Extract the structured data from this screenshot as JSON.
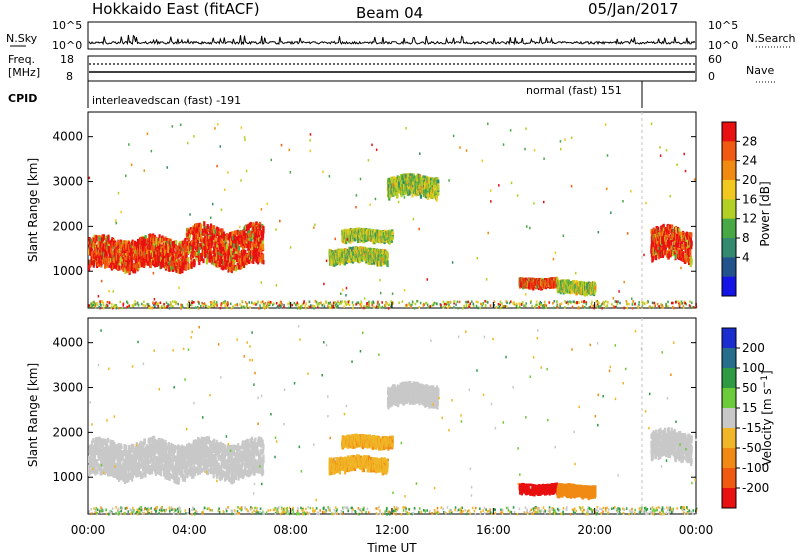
{
  "header": {
    "station": "Hokkaido East (fitACF)",
    "beam": "Beam 04",
    "date": "05/Jan/2017"
  },
  "noise_panel": {
    "left_label": "N.Sky",
    "right_label": "N.Search",
    "left_ticks": [
      "10^5",
      "10^0"
    ],
    "right_ticks": [
      "10^5",
      "10^0"
    ]
  },
  "freq_panel": {
    "left_label_1": "Freq.",
    "left_label_2": "[MHz]",
    "right_label": "Nave",
    "left_ticks": [
      "18",
      "8"
    ],
    "right_ticks": [
      "60",
      "0"
    ]
  },
  "cpid_panel": {
    "label": "CPID",
    "modes": [
      {
        "name": "interleavedscan (fast) -191",
        "start_hour": 0,
        "end_hour": 21.9
      },
      {
        "name": "normal (fast) 151",
        "start_hour": 21.9,
        "end_hour": 24
      }
    ]
  },
  "power_colorbar": {
    "label": "Power [dB]",
    "ticks": [
      "28",
      "24",
      "20",
      "16",
      "12",
      "8",
      "4"
    ],
    "colors": [
      "#e81010",
      "#f05a12",
      "#f08a10",
      "#f0c820",
      "#b2cf26",
      "#47a845",
      "#338a6f",
      "#23538c",
      "#1414e6"
    ]
  },
  "velocity_colorbar": {
    "label": "Velocity [m s^-1]",
    "ticks": [
      "200",
      "100",
      "50",
      "15",
      "-15",
      "-50",
      "-100",
      "-200"
    ],
    "colors": [
      "#1a2ed0",
      "#276e8c",
      "#2e9a44",
      "#6ccb3a",
      "#c8c8c8",
      "#f0b628",
      "#f08a14",
      "#f05a10",
      "#e81010"
    ]
  },
  "chart_data": [
    {
      "type": "heatmap",
      "panel": "power",
      "ylabel": "Slant Range [km]",
      "ylim": [
        180,
        4550
      ],
      "yticks": [
        1000,
        2000,
        3000,
        4000
      ],
      "xlim": [
        0,
        24
      ],
      "features": [
        {
          "t_start": 0.0,
          "t_end": 3.8,
          "r_center": 1450,
          "r_halfwidth": 320,
          "level": "high"
        },
        {
          "t_start": 3.8,
          "t_end": 6.9,
          "r_center": 1600,
          "r_halfwidth": 420,
          "level": "high"
        },
        {
          "t_start": 9.5,
          "t_end": 11.8,
          "r_center": 1400,
          "r_halfwidth": 130,
          "level": "mid"
        },
        {
          "t_start": 10.0,
          "t_end": 12.0,
          "r_center": 1850,
          "r_halfwidth": 100,
          "level": "mid"
        },
        {
          "t_start": 11.8,
          "t_end": 13.8,
          "r_center": 2950,
          "r_halfwidth": 200,
          "level": "mid"
        },
        {
          "t_start": 17.0,
          "t_end": 18.5,
          "r_center": 800,
          "r_halfwidth": 70,
          "level": "high"
        },
        {
          "t_start": 18.5,
          "t_end": 20.0,
          "r_center": 700,
          "r_halfwidth": 100,
          "level": "mid"
        },
        {
          "t_start": 22.2,
          "t_end": 23.8,
          "r_center": 1650,
          "r_halfwidth": 330,
          "level": "high"
        }
      ]
    },
    {
      "type": "heatmap",
      "panel": "velocity",
      "ylabel": "Slant Range [km]",
      "xlabel": "Time UT",
      "ylim": [
        180,
        4550
      ],
      "yticks": [
        1000,
        2000,
        3000,
        4000
      ],
      "xlim": [
        0,
        24
      ],
      "xticks": [
        "00:00",
        "04:00",
        "08:00",
        "12:00",
        "16:00",
        "20:00",
        "00:00"
      ],
      "features": [
        {
          "t_start": 0.0,
          "t_end": 6.9,
          "r_center": 1450,
          "r_halfwidth": 380,
          "velocity": 0
        },
        {
          "t_start": 9.5,
          "t_end": 11.8,
          "r_center": 1350,
          "r_halfwidth": 130,
          "velocity": -40
        },
        {
          "t_start": 10.0,
          "t_end": 12.0,
          "r_center": 1850,
          "r_halfwidth": 100,
          "velocity": -40
        },
        {
          "t_start": 11.8,
          "t_end": 13.8,
          "r_center": 2900,
          "r_halfwidth": 200,
          "velocity": 0
        },
        {
          "t_start": 17.0,
          "t_end": 18.5,
          "r_center": 800,
          "r_halfwidth": 70,
          "velocity": -200
        },
        {
          "t_start": 18.5,
          "t_end": 20.0,
          "r_center": 750,
          "r_halfwidth": 100,
          "velocity": -80
        },
        {
          "t_start": 22.2,
          "t_end": 23.8,
          "r_center": 1750,
          "r_halfwidth": 300,
          "velocity": 0
        }
      ]
    }
  ]
}
